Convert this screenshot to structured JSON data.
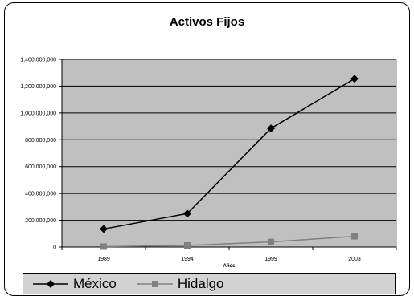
{
  "chart_data": {
    "type": "line",
    "title": "Activos Fijos",
    "xlabel": "Años",
    "ylabel": "",
    "categories": [
      "1989",
      "1994",
      "1999",
      "2003"
    ],
    "ylim": [
      0,
      1400000000
    ],
    "yticks": [
      0,
      200000000,
      400000000,
      600000000,
      800000000,
      1000000000,
      1200000000,
      1400000000
    ],
    "ytick_labels": [
      "0",
      "200,000,000",
      "400,000,000",
      "600,000,000",
      "800,000,000",
      "1,000,000,000",
      "1,200,000,000",
      "1,400,000,000"
    ],
    "grid": true,
    "legend_position": "bottom",
    "plot_background": "#c0c0c0",
    "series": [
      {
        "name": "México",
        "values": [
          135000000,
          250000000,
          885000000,
          1255000000
        ],
        "color": "#000000",
        "marker": "diamond"
      },
      {
        "name": "Hidalgo",
        "values": [
          3000000,
          12000000,
          38000000,
          80000000
        ],
        "color": "#808080",
        "marker": "square"
      }
    ]
  }
}
